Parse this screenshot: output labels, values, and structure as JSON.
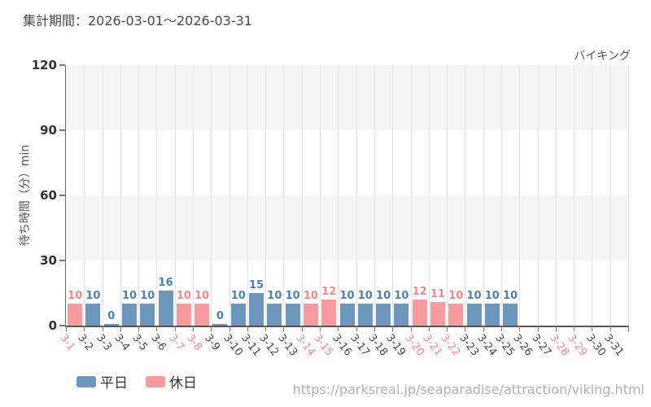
{
  "header": {
    "period_title": "集計期間：2026-03-01～2026-03-31",
    "attraction_name": "バイキング"
  },
  "chart_data": {
    "type": "bar",
    "title": "バイキング",
    "xlabel": "",
    "ylabel": "待ち時間（分）min",
    "ylim": [
      0,
      120
    ],
    "yticks": [
      0,
      30,
      60,
      90,
      120
    ],
    "grid": "horizontal-bands-and-vertical-lines",
    "legend_position": "bottom-left",
    "series": [
      {
        "name": "平日",
        "type": "weekday",
        "color": "#6d96bc",
        "label_color": "#4e81b3"
      },
      {
        "name": "休日",
        "type": "holiday",
        "color": "#f99a9e",
        "label_color": "#f9868c"
      }
    ],
    "days": [
      {
        "date": "3-1",
        "value": 10,
        "type": "holiday"
      },
      {
        "date": "3-2",
        "value": 10,
        "type": "weekday"
      },
      {
        "date": "3-3",
        "value": 0,
        "type": "weekday"
      },
      {
        "date": "3-4",
        "value": 10,
        "type": "weekday"
      },
      {
        "date": "3-5",
        "value": 10,
        "type": "weekday"
      },
      {
        "date": "3-6",
        "value": 16,
        "type": "weekday"
      },
      {
        "date": "3-7",
        "value": 10,
        "type": "holiday"
      },
      {
        "date": "3-8",
        "value": 10,
        "type": "holiday"
      },
      {
        "date": "3-9",
        "value": 0,
        "type": "weekday"
      },
      {
        "date": "3-10",
        "value": 10,
        "type": "weekday"
      },
      {
        "date": "3-11",
        "value": 15,
        "type": "weekday"
      },
      {
        "date": "3-12",
        "value": 10,
        "type": "weekday"
      },
      {
        "date": "3-13",
        "value": 10,
        "type": "weekday"
      },
      {
        "date": "3-14",
        "value": 10,
        "type": "holiday"
      },
      {
        "date": "3-15",
        "value": 12,
        "type": "holiday"
      },
      {
        "date": "3-16",
        "value": 10,
        "type": "weekday"
      },
      {
        "date": "3-17",
        "value": 10,
        "type": "weekday"
      },
      {
        "date": "3-18",
        "value": 10,
        "type": "weekday"
      },
      {
        "date": "3-19",
        "value": 10,
        "type": "weekday"
      },
      {
        "date": "3-20",
        "value": 12,
        "type": "holiday"
      },
      {
        "date": "3-21",
        "value": 11,
        "type": "holiday"
      },
      {
        "date": "3-22",
        "value": 10,
        "type": "holiday"
      },
      {
        "date": "3-23",
        "value": 10,
        "type": "weekday"
      },
      {
        "date": "3-24",
        "value": 10,
        "type": "weekday"
      },
      {
        "date": "3-25",
        "value": 10,
        "type": "weekday"
      },
      {
        "date": "3-26",
        "value": null,
        "type": "weekday"
      },
      {
        "date": "3-27",
        "value": null,
        "type": "weekday"
      },
      {
        "date": "3-28",
        "value": null,
        "type": "holiday"
      },
      {
        "date": "3-29",
        "value": null,
        "type": "holiday"
      },
      {
        "date": "3-30",
        "value": null,
        "type": "weekday"
      },
      {
        "date": "3-31",
        "value": null,
        "type": "weekday"
      }
    ]
  },
  "colors": {
    "weekday_bar": "#6d96bc",
    "holiday_bar": "#f99a9e",
    "weekday_label": "#4e81b3",
    "holiday_label": "#f9868c",
    "weekday_date": "#4d4d4d",
    "holiday_date": "#f9868c",
    "band": "#f5f5f5",
    "gridline": "#e4e4e4",
    "axis": "#555555"
  },
  "footer": {
    "url": "https://parksreal.jp/seaparadise/attraction/viking.html"
  }
}
